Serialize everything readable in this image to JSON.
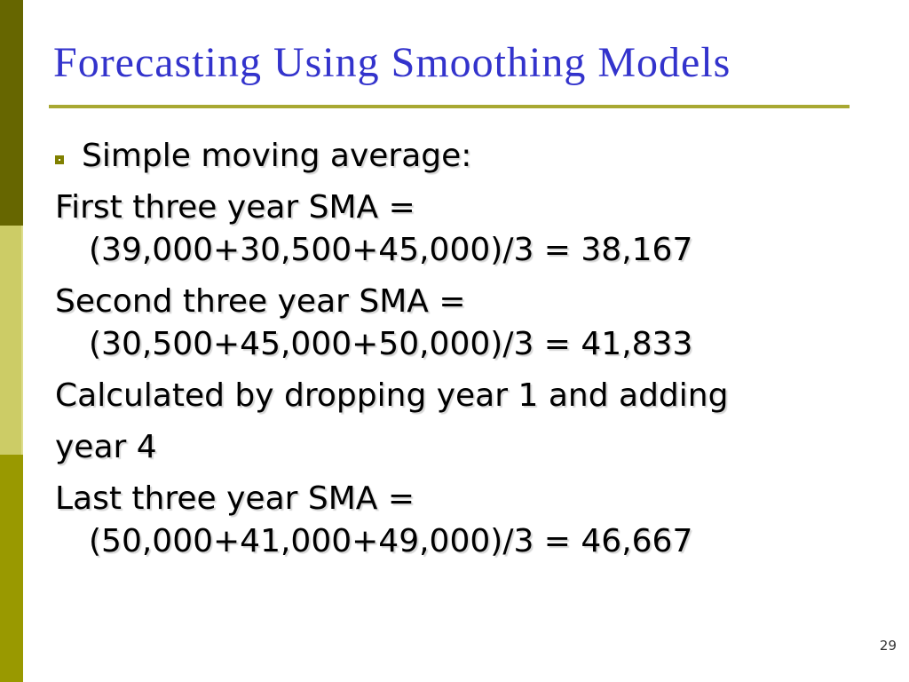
{
  "slide": {
    "title": "Forecasting Using Smoothing Models",
    "page_number": "29"
  },
  "colors": {
    "title_text": "#3333CC",
    "title_rule": "#A8A832",
    "sidebar_dark": "#666600",
    "sidebar_light": "#CCCC66",
    "sidebar_light_highlight": "#DDDD8C",
    "sidebar_medium": "#999900",
    "bullet_outline": "#808000",
    "body_text": "#000000"
  },
  "body": {
    "bullet_item": "Simple moving average:",
    "paragraphs": [
      {
        "lines": [
          "First three year SMA =",
          "(39,000+30,500+45,000)/3 = 38,167"
        ]
      },
      {
        "lines": [
          "Second three year SMA =",
          "(30,500+45,000+50,000)/3 = 41,833"
        ]
      },
      {
        "lines": [
          "Calculated by dropping year 1 and adding"
        ]
      },
      {
        "lines": [
          "year 4"
        ]
      },
      {
        "lines": [
          "Last three year SMA =",
          "(50,000+41,000+49,000)/3 = 46,667"
        ]
      }
    ]
  }
}
